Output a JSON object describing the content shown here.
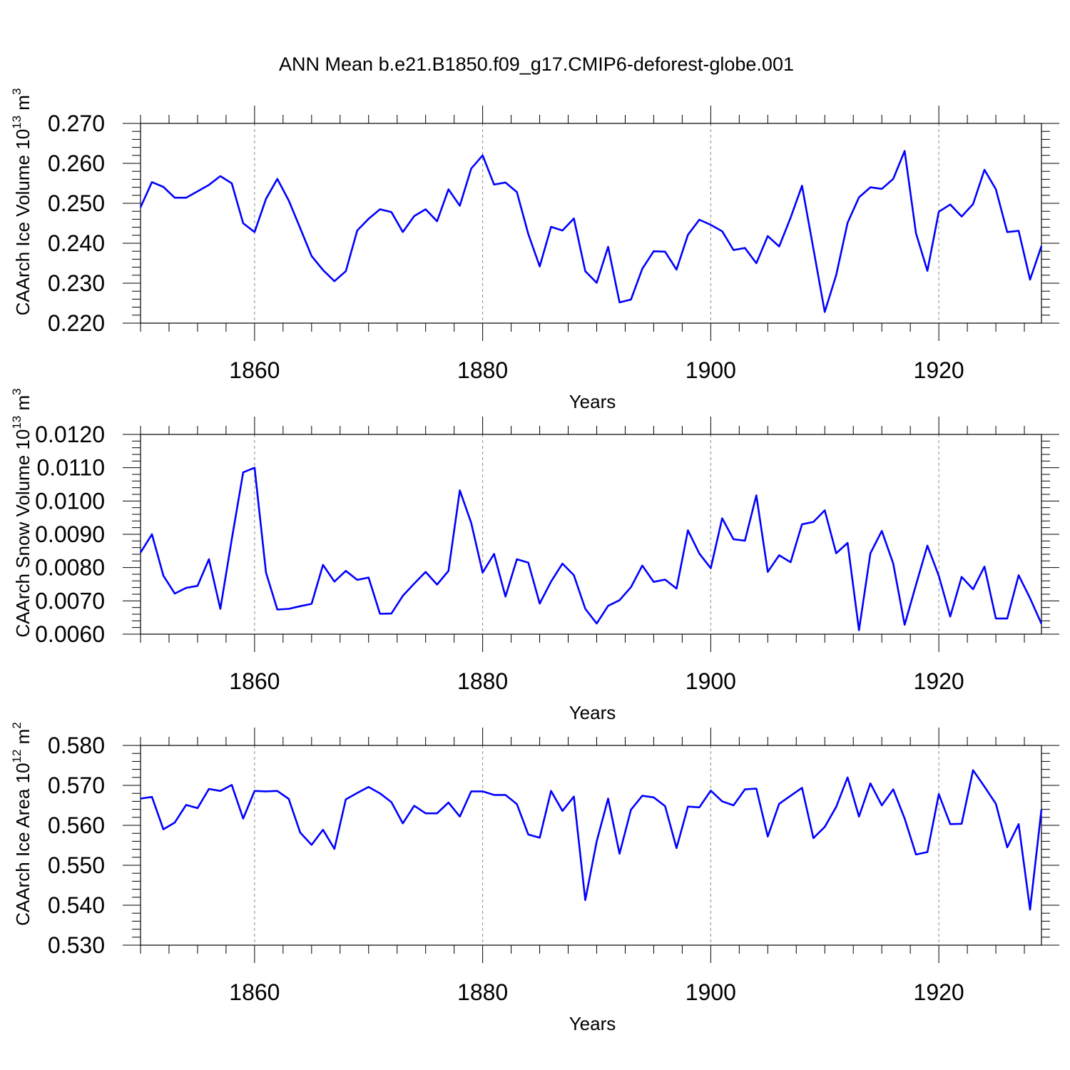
{
  "chart_data": {
    "type": "line",
    "title": "ANN Mean b.e21.B1850.f09_g17.CMIP6-deforest-globe.001",
    "x_label": "Years",
    "x_range": [
      1850,
      1929
    ],
    "x_ticks": [
      1860,
      1880,
      1900,
      1920
    ],
    "x_tick_labels": [
      "1860",
      "1880",
      "1900",
      "1920"
    ],
    "line_color": "#0000ff",
    "x": [
      1850,
      1851,
      1852,
      1853,
      1854,
      1855,
      1856,
      1857,
      1858,
      1859,
      1860,
      1861,
      1862,
      1863,
      1864,
      1865,
      1866,
      1867,
      1868,
      1869,
      1870,
      1871,
      1872,
      1873,
      1874,
      1875,
      1876,
      1877,
      1878,
      1879,
      1880,
      1881,
      1882,
      1883,
      1884,
      1885,
      1886,
      1887,
      1888,
      1889,
      1890,
      1891,
      1892,
      1893,
      1894,
      1895,
      1896,
      1897,
      1898,
      1899,
      1900,
      1901,
      1902,
      1903,
      1904,
      1905,
      1906,
      1907,
      1908,
      1909,
      1910,
      1911,
      1912,
      1913,
      1914,
      1915,
      1916,
      1917,
      1918,
      1919,
      1920,
      1921,
      1922,
      1923,
      1924,
      1925,
      1926,
      1927,
      1928,
      1929
    ],
    "panels": [
      {
        "ylabel_prefix": "CAArch Ice Volume 10",
        "ylabel_exp": "13",
        "ylabel_unit": " m",
        "ylabel_unit_exp": "3",
        "ylim": [
          0.22,
          0.27
        ],
        "y_ticks": [
          0.22,
          0.23,
          0.24,
          0.25,
          0.26,
          0.27
        ],
        "y_tick_labels": [
          "0.220",
          "0.230",
          "0.240",
          "0.250",
          "0.260",
          "0.270"
        ],
        "values": [
          0.249,
          0.2553,
          0.2541,
          0.2514,
          0.2514,
          0.253,
          0.2546,
          0.2568,
          0.255,
          0.245,
          0.2428,
          0.2511,
          0.2561,
          0.2507,
          0.2438,
          0.2368,
          0.2333,
          0.2305,
          0.233,
          0.2432,
          0.2461,
          0.2485,
          0.2478,
          0.2428,
          0.2468,
          0.2485,
          0.2455,
          0.2535,
          0.2494,
          0.2587,
          0.262,
          0.2547,
          0.2552,
          0.2528,
          0.2423,
          0.2342,
          0.2441,
          0.2432,
          0.2462,
          0.233,
          0.2301,
          0.2391,
          0.2252,
          0.2259,
          0.2336,
          0.238,
          0.2379,
          0.2334,
          0.2421,
          0.2459,
          0.2446,
          0.243,
          0.2383,
          0.2388,
          0.235,
          0.2418,
          0.2392,
          0.2464,
          0.2544,
          0.2386,
          0.2228,
          0.232,
          0.2451,
          0.2515,
          0.254,
          0.2536,
          0.2561,
          0.2631,
          0.2425,
          0.2331,
          0.2479,
          0.2497,
          0.2467,
          0.2498,
          0.2584,
          0.2535,
          0.2428,
          0.2431,
          0.2309,
          0.2393
        ]
      },
      {
        "ylabel_prefix": "CAArch Snow Volume 10",
        "ylabel_exp": "13",
        "ylabel_unit": " m",
        "ylabel_unit_exp": "3",
        "ylim": [
          0.006,
          0.012
        ],
        "y_ticks": [
          0.006,
          0.007,
          0.008,
          0.009,
          0.01,
          0.011,
          0.012
        ],
        "y_tick_labels": [
          "0.0060",
          "0.0070",
          "0.0080",
          "0.0090",
          "0.0100",
          "0.0110",
          "0.0120"
        ],
        "values": [
          0.00845,
          0.009,
          0.00776,
          0.00722,
          0.00739,
          0.00745,
          0.00825,
          0.00676,
          0.00885,
          0.01086,
          0.011,
          0.00785,
          0.00674,
          0.00676,
          0.00684,
          0.00691,
          0.00808,
          0.00758,
          0.0079,
          0.00763,
          0.0077,
          0.00661,
          0.00662,
          0.00715,
          0.00752,
          0.00787,
          0.00749,
          0.0079,
          0.01032,
          0.00934,
          0.00785,
          0.00841,
          0.00713,
          0.00825,
          0.00815,
          0.00692,
          0.00758,
          0.00812,
          0.00777,
          0.00676,
          0.00632,
          0.00685,
          0.00702,
          0.00741,
          0.00806,
          0.00757,
          0.00764,
          0.00737,
          0.00912,
          0.00842,
          0.00798,
          0.00948,
          0.00885,
          0.00881,
          0.01017,
          0.00787,
          0.00837,
          0.00816,
          0.0093,
          0.00937,
          0.00972,
          0.00843,
          0.00874,
          0.00612,
          0.00843,
          0.0091,
          0.00812,
          0.00628,
          0.00748,
          0.00866,
          0.00775,
          0.00653,
          0.00772,
          0.00735,
          0.00803,
          0.00647,
          0.00647,
          0.00777,
          0.00708,
          0.00631
        ]
      },
      {
        "ylabel_prefix": "CAArch Ice Area 10",
        "ylabel_exp": "12",
        "ylabel_unit": " m",
        "ylabel_unit_exp": "2",
        "ylim": [
          0.53,
          0.58
        ],
        "y_ticks": [
          0.53,
          0.54,
          0.55,
          0.56,
          0.57,
          0.58
        ],
        "y_tick_labels": [
          "0.530",
          "0.540",
          "0.550",
          "0.560",
          "0.570",
          "0.580"
        ],
        "values": [
          0.5667,
          0.5671,
          0.559,
          0.5607,
          0.5651,
          0.5643,
          0.5691,
          0.5686,
          0.5701,
          0.5617,
          0.5686,
          0.5685,
          0.5686,
          0.5666,
          0.5582,
          0.5551,
          0.5589,
          0.5541,
          0.5665,
          0.5681,
          0.5696,
          0.568,
          0.5658,
          0.5605,
          0.5649,
          0.563,
          0.563,
          0.5657,
          0.5622,
          0.5685,
          0.5685,
          0.5676,
          0.5676,
          0.5653,
          0.5577,
          0.5569,
          0.5686,
          0.5636,
          0.5672,
          0.5413,
          0.556,
          0.5667,
          0.5529,
          0.5639,
          0.5674,
          0.567,
          0.5648,
          0.5543,
          0.5647,
          0.5645,
          0.5687,
          0.566,
          0.565,
          0.569,
          0.5692,
          0.5572,
          0.5654,
          0.5674,
          0.5694,
          0.5568,
          0.5596,
          0.5646,
          0.572,
          0.5622,
          0.5705,
          0.565,
          0.569,
          0.5617,
          0.5527,
          0.5533,
          0.5678,
          0.5603,
          0.5604,
          0.5738,
          0.5697,
          0.5654,
          0.5545,
          0.5603,
          0.5389,
          0.564
        ]
      }
    ]
  }
}
